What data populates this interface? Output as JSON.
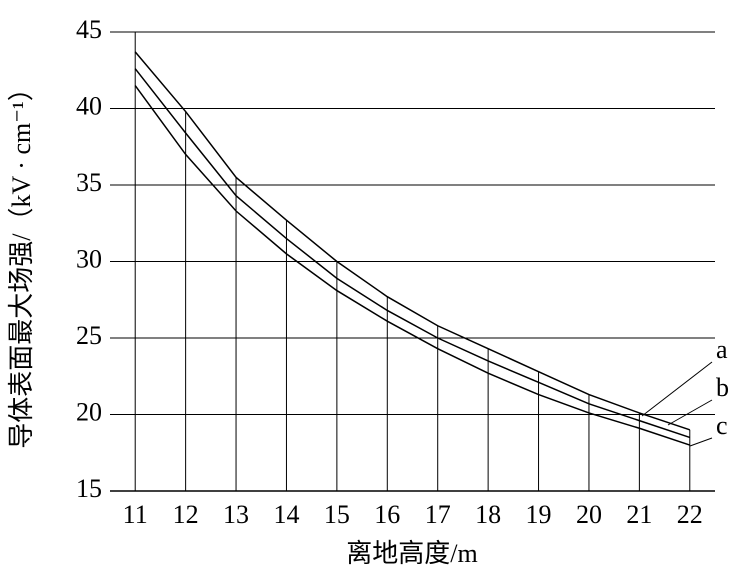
{
  "chart_data": {
    "type": "line",
    "x_label": "离地高度/m",
    "y_label": "导体表面最大场强/（kV · cm⁻¹）",
    "x": [
      11,
      12,
      13,
      14,
      15,
      16,
      17,
      18,
      19,
      20,
      21,
      22
    ],
    "series": [
      {
        "name": "a",
        "color": "#000000",
        "values": [
          43.7,
          39.8,
          35.5,
          32.7,
          30.0,
          27.7,
          25.8,
          24.3,
          22.8,
          21.3,
          20.1,
          19.0
        ]
      },
      {
        "name": "b",
        "color": "#000000",
        "values": [
          42.6,
          38.4,
          34.3,
          31.5,
          28.9,
          26.8,
          25.0,
          23.5,
          22.1,
          20.7,
          19.6,
          18.5
        ]
      },
      {
        "name": "c",
        "color": "#000000",
        "values": [
          41.5,
          37.0,
          33.3,
          30.5,
          28.1,
          26.1,
          24.3,
          22.7,
          21.3,
          20.1,
          19.1,
          18.0
        ]
      }
    ],
    "xlim": [
      10.5,
      22.5
    ],
    "xticks": [
      11,
      12,
      13,
      14,
      15,
      16,
      17,
      18,
      19,
      20,
      21,
      22
    ],
    "ylim": [
      15,
      45
    ],
    "yticks": [
      15,
      20,
      25,
      30,
      35,
      40,
      45
    ],
    "grid": true
  }
}
